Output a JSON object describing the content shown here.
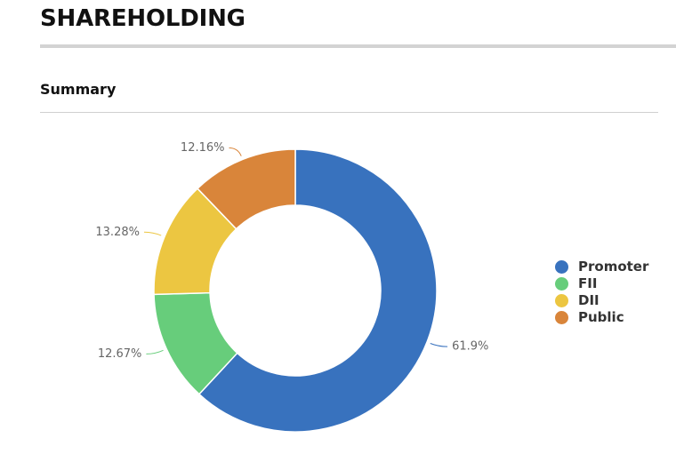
{
  "header": {
    "title": "SHAREHOLDING",
    "section_title": "Summary"
  },
  "chart_data": {
    "type": "pie",
    "variant": "donut",
    "title": "",
    "categories": [
      "Promoter",
      "FII",
      "DII",
      "Public"
    ],
    "values": [
      61.9,
      12.67,
      13.28,
      12.16
    ],
    "data_labels": [
      "61.9%",
      "12.67%",
      "13.28%",
      "12.16%"
    ],
    "colors": [
      "#3872be",
      "#67cd7b",
      "#ecc641",
      "#d9853a"
    ],
    "legend_position": "right",
    "start_angle_deg": 0,
    "direction": "clockwise"
  }
}
